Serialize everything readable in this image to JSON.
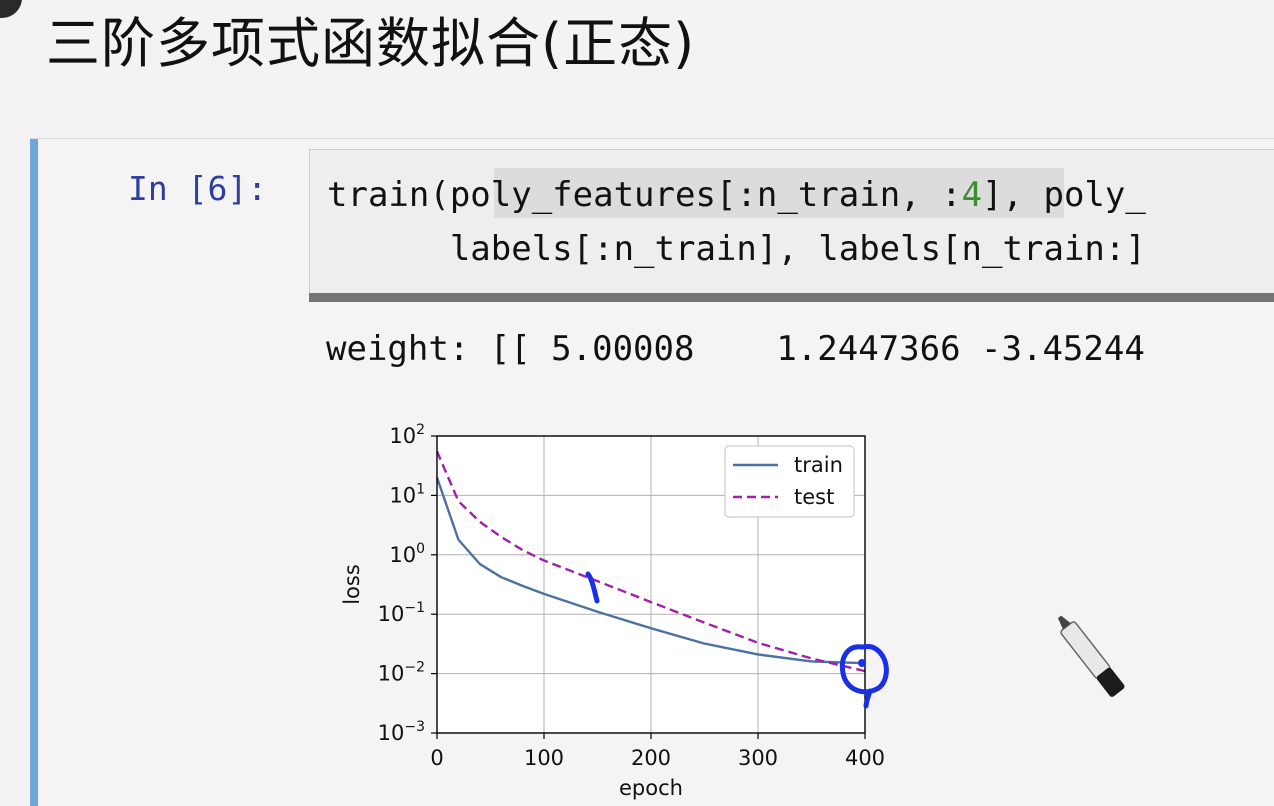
{
  "slide": {
    "title": "三阶多项式函数拟合(正态)"
  },
  "cell": {
    "prompt": "In [6]:",
    "code_line1_a": "train(",
    "code_line1_b": "poly_features[:n_train, :",
    "code_line1_num": "4",
    "code_line1_c": "], poly_",
    "code_line2": "      labels[:n_train], labels[n_train:]",
    "output_text": "weight: [[ 5.00008    1.2447366 -3.45244"
  },
  "colors": {
    "train": "#4c72a0",
    "test": "#a21fa8",
    "annotation": "#1a2fe6",
    "cell_accent": "#6fa6dc"
  },
  "icons": {
    "marker": "marker-pen-icon"
  },
  "chart_data": {
    "type": "line",
    "xlabel": "epoch",
    "ylabel": "loss",
    "xlim": [
      0,
      400
    ],
    "ylim": [
      0.001,
      100
    ],
    "yscale": "log",
    "xticks": [
      "0",
      "100",
      "200",
      "300",
      "400"
    ],
    "yticks": [
      {
        "base": "10",
        "exp": "2"
      },
      {
        "base": "10",
        "exp": "1"
      },
      {
        "base": "10",
        "exp": "0"
      },
      {
        "base": "10",
        "exp": "−1"
      },
      {
        "base": "10",
        "exp": "−2"
      },
      {
        "base": "10",
        "exp": "−3"
      }
    ],
    "grid": true,
    "legend_position": "top-right",
    "series": [
      {
        "name": "train",
        "style": "solid",
        "x": [
          0,
          20,
          40,
          60,
          80,
          100,
          150,
          200,
          250,
          300,
          350,
          400
        ],
        "y": [
          20,
          1.8,
          0.7,
          0.42,
          0.3,
          0.22,
          0.11,
          0.058,
          0.032,
          0.021,
          0.016,
          0.015
        ]
      },
      {
        "name": "test",
        "style": "dashed",
        "x": [
          0,
          20,
          40,
          60,
          80,
          100,
          150,
          200,
          250,
          300,
          350,
          400
        ],
        "y": [
          55,
          8,
          3.6,
          2.0,
          1.2,
          0.8,
          0.36,
          0.16,
          0.072,
          0.033,
          0.018,
          0.011
        ]
      }
    ]
  }
}
